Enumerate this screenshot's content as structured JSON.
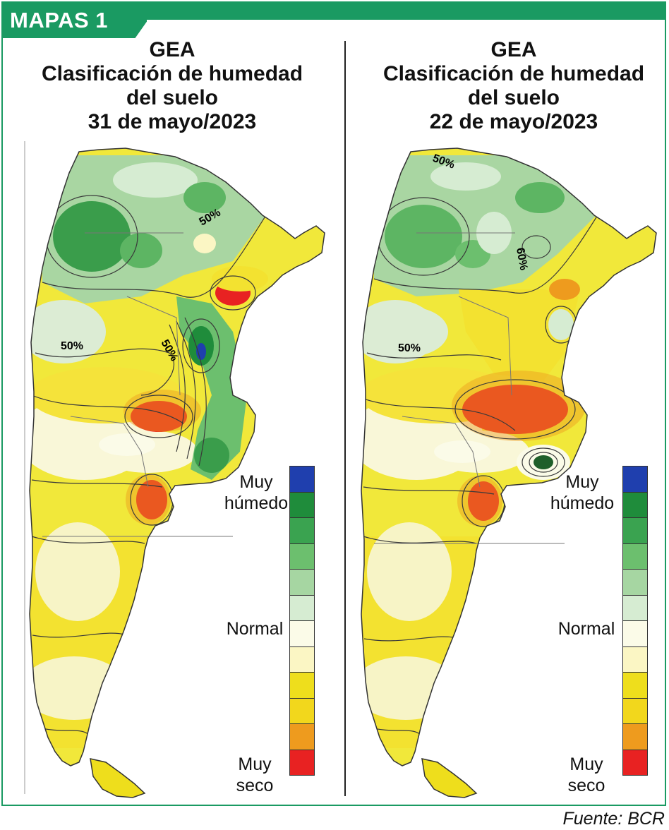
{
  "header": {
    "tag": "MAPAS 1"
  },
  "panels": [
    {
      "title": [
        "GEA",
        "Clasificación de humedad",
        "del suelo",
        "31 de mayo/2023"
      ],
      "contour_labels": [
        "50%",
        "50%",
        "50%"
      ]
    },
    {
      "title": [
        "GEA",
        "Clasificación de humedad",
        "del suelo",
        "22 de mayo/2023"
      ],
      "contour_labels": [
        "50%",
        "60%",
        "50%"
      ]
    }
  ],
  "legend": {
    "top_label": [
      "Muy",
      "húmedo"
    ],
    "mid_label": "Normal",
    "bottom_label": [
      "Muy",
      "seco"
    ],
    "scale_colors": [
      "#1f3fae",
      "#1f8c3b",
      "#3aa350",
      "#6cbf6e",
      "#a6d6a2",
      "#d6ecd2",
      "#fbfbe8",
      "#fbf6c4",
      "#eede1c",
      "#f2d71c",
      "#ee9b1e",
      "#e82222"
    ]
  },
  "source": "Fuente: BCR"
}
